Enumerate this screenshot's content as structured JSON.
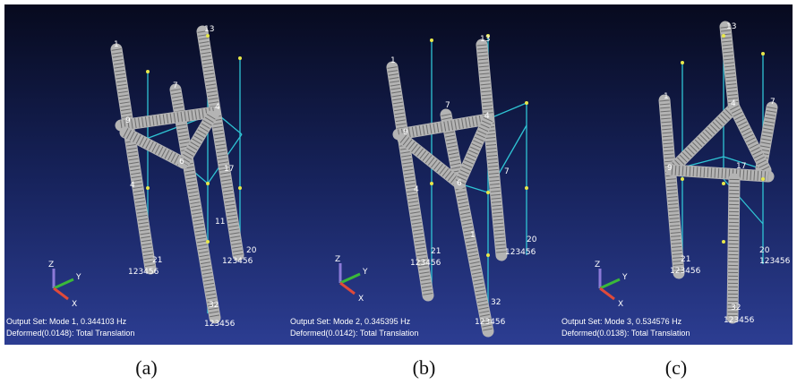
{
  "panels": [
    {
      "caption": "(a)",
      "output_set": "Output Set: Mode 1, 0.344103 Hz",
      "deformed": "Deformed(0.0148): Total Translation",
      "axes": [
        "Z",
        "Y",
        "X"
      ],
      "node_labels": [
        "1",
        "13",
        "7",
        "9",
        "4",
        "6",
        "17",
        "4",
        "11",
        "21",
        "20",
        "32",
        "123456",
        "123456",
        "123456"
      ]
    },
    {
      "caption": "(b)",
      "output_set": "Output Set: Mode 2, 0.345395 Hz",
      "deformed": "Deformed(0.0142): Total Translation",
      "axes": [
        "Z",
        "Y",
        "X"
      ],
      "node_labels": [
        "1",
        "13",
        "7",
        "9",
        "4",
        "6",
        "7",
        "4",
        "1",
        "21",
        "20",
        "32",
        "123456",
        "123456",
        "123456"
      ]
    },
    {
      "caption": "(c)",
      "output_set": "Output Set: Mode 3, 0.534576 Hz",
      "deformed": "Deformed(0.0138): Total Translation",
      "axes": [
        "Z",
        "Y",
        "X"
      ],
      "node_labels": [
        "1",
        "13",
        "7",
        "4",
        "9",
        "17",
        "21",
        "20",
        "32",
        "123456",
        "123456",
        "123456"
      ]
    }
  ]
}
